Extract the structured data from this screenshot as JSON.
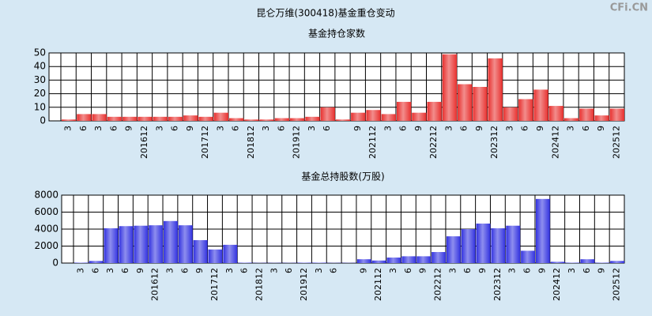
{
  "title": "昆仑万维(300418)基金重仓变动",
  "watermark": "CFi.CN",
  "chart_data": [
    {
      "type": "bar",
      "title": "基金持仓家数",
      "categories": [
        "3",
        "6",
        "3",
        "6",
        "9",
        "201612",
        "3",
        "6",
        "9",
        "201712",
        "3",
        "6",
        "201812",
        "3",
        "6",
        "201912",
        "3",
        "6",
        null,
        "9",
        "202112",
        "3",
        "6",
        "9",
        "202212",
        "3",
        "6",
        "9",
        "202312",
        "3",
        "6",
        "9",
        "202412",
        "3",
        "6",
        "9",
        "202512"
      ],
      "values": [
        1,
        5,
        5,
        3,
        3,
        3,
        3,
        3,
        4,
        3,
        6,
        2,
        1,
        1,
        2,
        2,
        3,
        10,
        1,
        6,
        8,
        5,
        14,
        6,
        14,
        49,
        27,
        25,
        46,
        10,
        16,
        23,
        11,
        2,
        9,
        4,
        9
      ],
      "color": "#e8302e",
      "ylim": [
        0,
        50
      ],
      "yticks": [
        0,
        10,
        20,
        30,
        40,
        50
      ],
      "grid": true
    },
    {
      "type": "bar",
      "title": "基金总持股数(万股)",
      "categories": [
        "3",
        "6",
        "3",
        "6",
        "9",
        "201612",
        "3",
        "6",
        "9",
        "201712",
        "3",
        "6",
        "201812",
        "3",
        "6",
        "201912",
        "3",
        "6",
        null,
        "9",
        "202112",
        "3",
        "6",
        "9",
        "202212",
        "3",
        "6",
        "9",
        "202312",
        "3",
        "6",
        "9",
        "202412",
        "3",
        "6",
        "9",
        "202512"
      ],
      "values": [
        50,
        250,
        4100,
        4350,
        4400,
        4450,
        4950,
        4450,
        2700,
        1600,
        2150,
        50,
        30,
        30,
        30,
        50,
        50,
        30,
        30,
        450,
        300,
        650,
        800,
        800,
        1300,
        3150,
        4000,
        4650,
        4100,
        4400,
        1450,
        7550,
        150,
        50,
        450,
        50,
        250
      ],
      "color": "#3232e0",
      "ylim": [
        0,
        8000
      ],
      "yticks": [
        0,
        2000,
        4000,
        6000,
        8000
      ],
      "grid": true
    }
  ]
}
